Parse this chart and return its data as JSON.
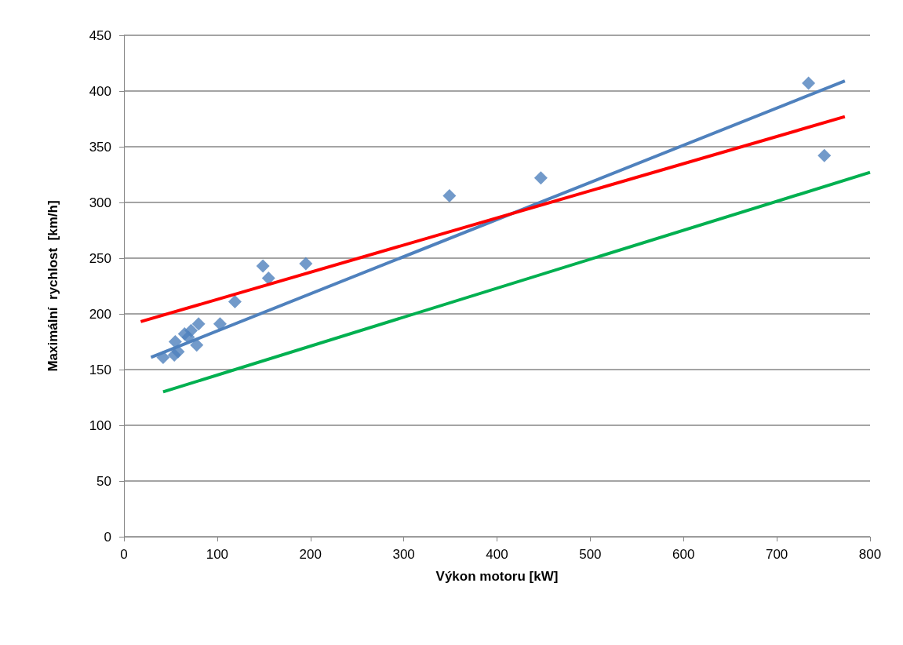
{
  "chart_data": {
    "type": "scatter",
    "xlabel": "Výkon motoru [kW]",
    "ylabel": "Maximální  rychlost  [km/h]",
    "xlim": [
      0,
      800
    ],
    "xticks": [
      0,
      100,
      200,
      300,
      400,
      500,
      600,
      700,
      800
    ],
    "ylim": [
      0,
      450
    ],
    "yticks": [
      0,
      50,
      100,
      150,
      200,
      250,
      300,
      350,
      400,
      450
    ],
    "grid": "y",
    "marker": "diamond",
    "series": [
      {
        "color": "#4f81bd",
        "x": [
          42,
          54,
          55,
          58,
          65,
          69,
          72,
          78,
          80,
          103,
          119,
          149,
          155,
          195,
          349,
          447,
          734,
          751
        ],
        "values": [
          161,
          163,
          175,
          166,
          182,
          179,
          185,
          172,
          191,
          191,
          211,
          243,
          232,
          245,
          306,
          322,
          407,
          342
        ]
      },
      {
        "type": "line",
        "marker": "none",
        "color": "#4f81bd",
        "x": [
          29,
          773
        ],
        "values": [
          161,
          409
        ]
      },
      {
        "type": "line",
        "marker": "none",
        "color": "#ff0000",
        "x": [
          18,
          773
        ],
        "values": [
          193,
          377
        ]
      },
      {
        "type": "line",
        "marker": "none",
        "color": "#00b050",
        "x": [
          42,
          800
        ],
        "values": [
          130,
          327
        ]
      }
    ]
  }
}
